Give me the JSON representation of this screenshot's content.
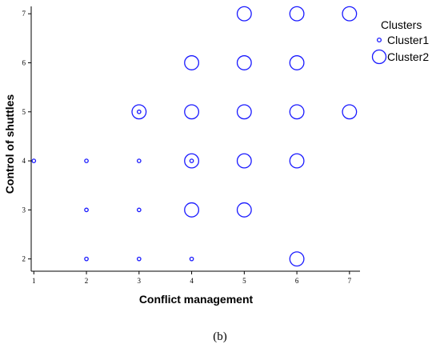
{
  "caption": "(b)",
  "chart_data": {
    "type": "scatter",
    "xlabel": "Conflict management",
    "ylabel": "Control of shuttles",
    "x_ticks": [
      1,
      2,
      3,
      4,
      5,
      6,
      7
    ],
    "y_ticks": [
      2,
      3,
      4,
      5,
      6,
      7
    ],
    "xlim": [
      0.95,
      7.2
    ],
    "ylim": [
      1.75,
      7.15
    ],
    "grid": false,
    "legend": {
      "title": "Clusters",
      "placement": "top-right"
    },
    "series": [
      {
        "name": "Cluster1",
        "color": "#1a1aff",
        "marker": "small-circle",
        "points": [
          {
            "x": 1,
            "y": 4
          },
          {
            "x": 2,
            "y": 4
          },
          {
            "x": 2,
            "y": 3
          },
          {
            "x": 2,
            "y": 2
          },
          {
            "x": 3,
            "y": 5
          },
          {
            "x": 3,
            "y": 4
          },
          {
            "x": 3,
            "y": 3
          },
          {
            "x": 3,
            "y": 2
          },
          {
            "x": 4,
            "y": 4
          },
          {
            "x": 4,
            "y": 2
          }
        ]
      },
      {
        "name": "Cluster2",
        "color": "#1a1aff",
        "marker": "large-circle",
        "points": [
          {
            "x": 3,
            "y": 5
          },
          {
            "x": 4,
            "y": 6
          },
          {
            "x": 4,
            "y": 5
          },
          {
            "x": 4,
            "y": 4
          },
          {
            "x": 4,
            "y": 3
          },
          {
            "x": 5,
            "y": 7
          },
          {
            "x": 5,
            "y": 6
          },
          {
            "x": 5,
            "y": 5
          },
          {
            "x": 5,
            "y": 4
          },
          {
            "x": 5,
            "y": 3
          },
          {
            "x": 6,
            "y": 7
          },
          {
            "x": 6,
            "y": 6
          },
          {
            "x": 6,
            "y": 5
          },
          {
            "x": 6,
            "y": 4
          },
          {
            "x": 6,
            "y": 2
          },
          {
            "x": 7,
            "y": 7
          },
          {
            "x": 7,
            "y": 5
          }
        ]
      }
    ]
  }
}
